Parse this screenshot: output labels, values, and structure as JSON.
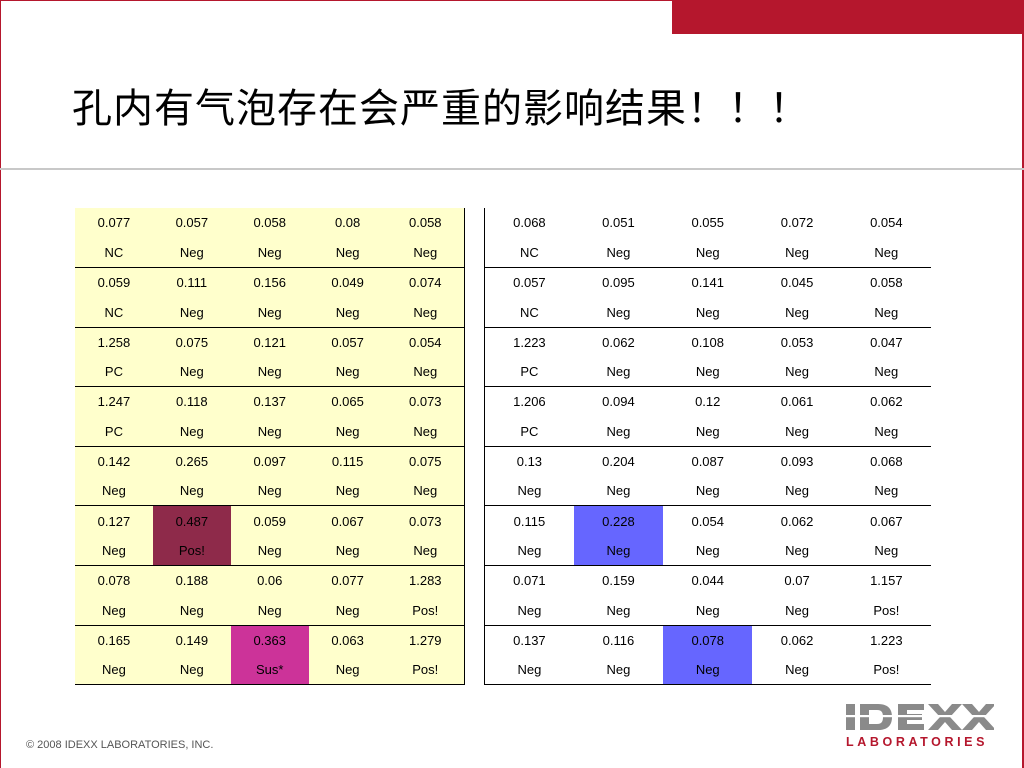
{
  "colors": {
    "brand_red": "#b5172d",
    "table_fill": "#ffffcc",
    "highlight_maroon": "#8e2a4a",
    "highlight_magenta": "#cc3399",
    "highlight_blue": "#6666ff"
  },
  "title": "孔内有气泡存在会严重的影响结果！！！",
  "left_table": {
    "rows": [
      [
        "0.077",
        "0.057",
        "0.058",
        "0.08",
        "0.058"
      ],
      [
        "NC",
        "Neg",
        "Neg",
        "Neg",
        "Neg"
      ],
      [
        "0.059",
        "0.111",
        "0.156",
        "0.049",
        "0.074"
      ],
      [
        "NC",
        "Neg",
        "Neg",
        "Neg",
        "Neg"
      ],
      [
        "1.258",
        "0.075",
        "0.121",
        "0.057",
        "0.054"
      ],
      [
        "PC",
        "Neg",
        "Neg",
        "Neg",
        "Neg"
      ],
      [
        "1.247",
        "0.118",
        "0.137",
        "0.065",
        "0.073"
      ],
      [
        "PC",
        "Neg",
        "Neg",
        "Neg",
        "Neg"
      ],
      [
        "0.142",
        "0.265",
        "0.097",
        "0.115",
        "0.075"
      ],
      [
        "Neg",
        "Neg",
        "Neg",
        "Neg",
        "Neg"
      ],
      [
        "0.127",
        "0.487",
        "0.059",
        "0.067",
        "0.073"
      ],
      [
        "Neg",
        "Pos!",
        "Neg",
        "Neg",
        "Neg"
      ],
      [
        "0.078",
        "0.188",
        "0.06",
        "0.077",
        "1.283"
      ],
      [
        "Neg",
        "Neg",
        "Neg",
        "Neg",
        "Pos!"
      ],
      [
        "0.165",
        "0.149",
        "0.363",
        "0.063",
        "1.279"
      ],
      [
        "Neg",
        "Neg",
        "Sus*",
        "Neg",
        "Pos!"
      ]
    ],
    "highlights": [
      {
        "row": 10,
        "col": 1,
        "color": "maroon"
      },
      {
        "row": 11,
        "col": 1,
        "color": "maroon"
      },
      {
        "row": 14,
        "col": 2,
        "color": "magenta"
      },
      {
        "row": 15,
        "col": 2,
        "color": "magenta"
      }
    ]
  },
  "right_table": {
    "rows": [
      [
        "0.068",
        "0.051",
        "0.055",
        "0.072",
        "0.054"
      ],
      [
        "NC",
        "Neg",
        "Neg",
        "Neg",
        "Neg"
      ],
      [
        "0.057",
        "0.095",
        "0.141",
        "0.045",
        "0.058"
      ],
      [
        "NC",
        "Neg",
        "Neg",
        "Neg",
        "Neg"
      ],
      [
        "1.223",
        "0.062",
        "0.108",
        "0.053",
        "0.047"
      ],
      [
        "PC",
        "Neg",
        "Neg",
        "Neg",
        "Neg"
      ],
      [
        "1.206",
        "0.094",
        "0.12",
        "0.061",
        "0.062"
      ],
      [
        "PC",
        "Neg",
        "Neg",
        "Neg",
        "Neg"
      ],
      [
        "0.13",
        "0.204",
        "0.087",
        "0.093",
        "0.068"
      ],
      [
        "Neg",
        "Neg",
        "Neg",
        "Neg",
        "Neg"
      ],
      [
        "0.115",
        "0.228",
        "0.054",
        "0.062",
        "0.067"
      ],
      [
        "Neg",
        "Neg",
        "Neg",
        "Neg",
        "Neg"
      ],
      [
        "0.071",
        "0.159",
        "0.044",
        "0.07",
        "1.157"
      ],
      [
        "Neg",
        "Neg",
        "Neg",
        "Neg",
        "Pos!"
      ],
      [
        "0.137",
        "0.116",
        "0.078",
        "0.062",
        "1.223"
      ],
      [
        "Neg",
        "Neg",
        "Neg",
        "Neg",
        "Pos!"
      ]
    ],
    "highlights": [
      {
        "row": 10,
        "col": 1,
        "color": "blue"
      },
      {
        "row": 11,
        "col": 1,
        "color": "blue"
      },
      {
        "row": 14,
        "col": 2,
        "color": "blue"
      },
      {
        "row": 15,
        "col": 2,
        "color": "blue"
      }
    ]
  },
  "footer": "© 2008 IDEXX LABORATORIES, INC.",
  "logo": {
    "name": "IDEXX",
    "subtitle": "LABORATORIES"
  }
}
